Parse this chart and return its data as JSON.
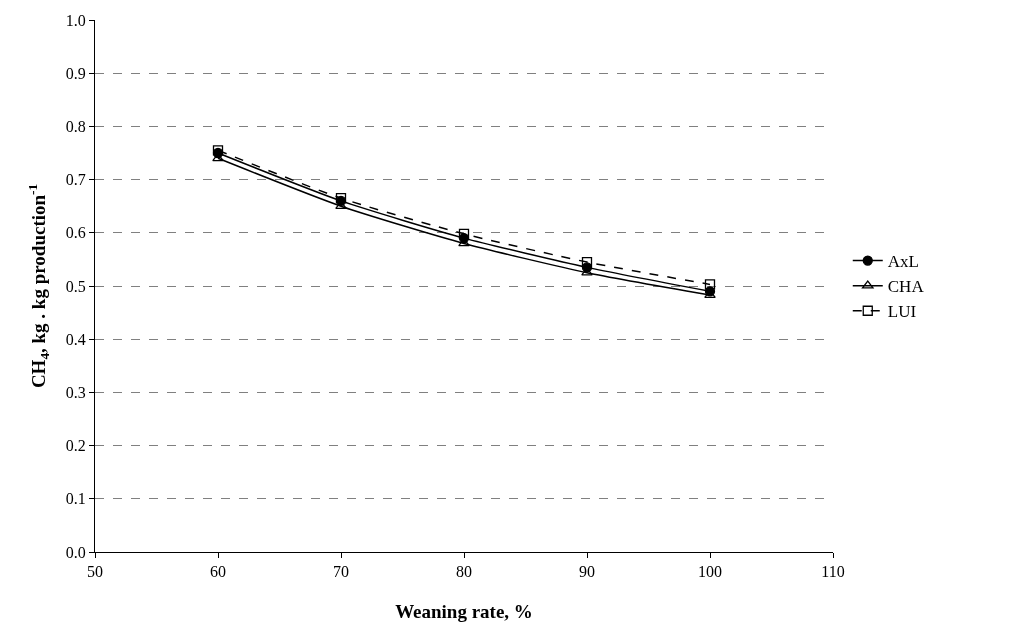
{
  "chart_data": {
    "type": "line",
    "xlabel": "Weaning rate, %",
    "ylabel": "CH$_{4}$, kg . kg production$^{-1}$",
    "x": [
      60,
      70,
      80,
      90,
      100
    ],
    "series": [
      {
        "name": "AxL",
        "color": "#000000",
        "marker": "circle",
        "line_style": "solid",
        "values": [
          0.75,
          0.66,
          0.59,
          0.535,
          0.49
        ]
      },
      {
        "name": "CHA",
        "color": "#000000",
        "marker": "triangle",
        "line_style": "solid",
        "values": [
          0.74,
          0.65,
          0.58,
          0.525,
          0.483
        ]
      },
      {
        "name": "LUI",
        "color": "#000000",
        "marker": "square",
        "line_style": "dashed",
        "values": [
          0.755,
          0.665,
          0.598,
          0.545,
          0.503
        ]
      }
    ],
    "xlim": [
      50,
      110
    ],
    "xticks": [
      50,
      60,
      70,
      80,
      90,
      100,
      110
    ],
    "ylim": [
      0,
      1
    ],
    "yticks": [
      {
        "value": 0,
        "label": "0.0"
      },
      0.1,
      0.2,
      0.3,
      0.4,
      0.5,
      0.6,
      0.7,
      0.8,
      0.9,
      {
        "value": 1,
        "label": "1.0"
      }
    ],
    "grid": "y",
    "legend": "right"
  }
}
